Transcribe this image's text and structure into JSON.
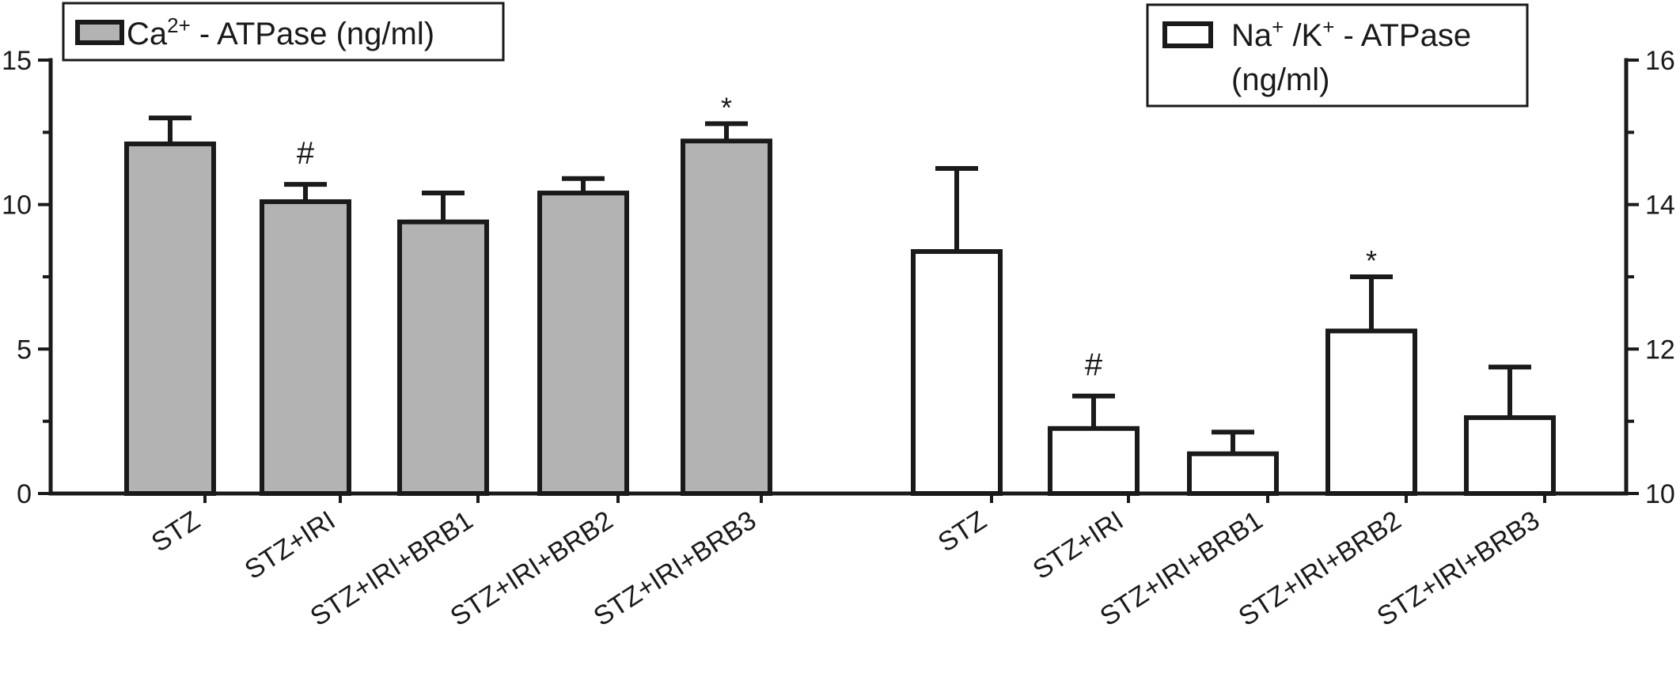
{
  "chart_data": {
    "type": "bar",
    "title": "",
    "groups": [
      {
        "name": "Ca²⁺ - ATPase (ng/ml)",
        "legend": {
          "base": "Ca",
          "sup": "2+",
          "rest": " - ATPase (ng/ml)"
        },
        "axis": "left",
        "color": "#b3b3b3",
        "categories": [
          "STZ",
          "STZ+IRI",
          "STZ+IRI+BRB1",
          "STZ+IRI+BRB2",
          "STZ+IRI+BRB3"
        ],
        "values": [
          12.1,
          10.1,
          9.4,
          10.4,
          12.2
        ],
        "errors": [
          0.9,
          0.6,
          1.0,
          0.5,
          0.6
        ],
        "annotations": [
          "",
          "#",
          "",
          "",
          "*"
        ]
      },
      {
        "name": "Na⁺ /K⁺ - ATPase (ng/ml)",
        "legend": {
          "base": "Na",
          "sup": "+",
          "mid": " /K",
          "sup2": "+",
          "rest": " - ATPase",
          "line2": "(ng/ml)"
        },
        "axis": "right",
        "color": "#ffffff",
        "categories": [
          "STZ",
          "STZ+IRI",
          "STZ+IRI+BRB1",
          "STZ+IRI+BRB2",
          "STZ+IRI+BRB3"
        ],
        "values": [
          13.35,
          10.9,
          10.55,
          12.25,
          11.05
        ],
        "errors": [
          1.15,
          0.45,
          0.3,
          0.75,
          0.7
        ],
        "annotations": [
          "",
          "#",
          "",
          "*",
          ""
        ]
      }
    ],
    "y_left": {
      "min": 0,
      "max": 15,
      "ticks": [
        0,
        5,
        10,
        15
      ],
      "minor_step": 2.5
    },
    "y_right": {
      "min": 10,
      "max": 16,
      "ticks": [
        10,
        12,
        14,
        16
      ],
      "minor_step": 1
    },
    "legend_position": "top"
  }
}
